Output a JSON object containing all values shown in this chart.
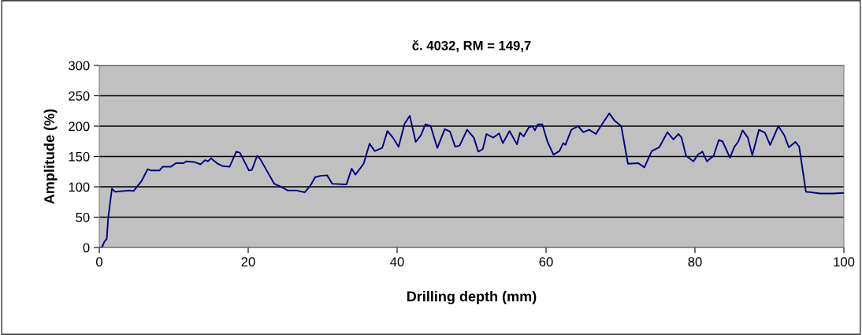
{
  "chart_data": {
    "type": "line",
    "title": "č. 4032, RM = 149,7",
    "xlabel": "Drilling depth (mm)",
    "ylabel": "Amplitude (%)",
    "xlim": [
      0,
      100
    ],
    "xticks": [
      0,
      20,
      40,
      60,
      80,
      100
    ],
    "ylim": [
      0,
      300
    ],
    "yticks": [
      0,
      50,
      100,
      150,
      200,
      250,
      300
    ],
    "grid": "y",
    "legend": false,
    "marker": "none",
    "line_style": "solid",
    "series": [
      {
        "color": "#000080",
        "x": [
          0,
          0.35,
          0.7,
          1.0,
          1.2,
          1.7,
          2.1,
          4.1,
          4.6,
          5.7,
          6.5,
          6.9,
          8.1,
          8.5,
          9.6,
          10.3,
          11.3,
          11.7,
          12.7,
          13.6,
          14.2,
          14.6,
          15.0,
          15.9,
          16.6,
          17.5,
          18.4,
          18.9,
          20.1,
          20.5,
          21.2,
          21.6,
          22.3,
          23.5,
          24.4,
          25.3,
          26.5,
          27.6,
          28.3,
          29.0,
          29.7,
          30.6,
          31.3,
          33.2,
          33.9,
          34.4,
          35.5,
          36.3,
          37.0,
          38.0,
          38.7,
          39.5,
          40.2,
          41.0,
          41.7,
          42.5,
          43.2,
          43.8,
          44.5,
          45.4,
          46.4,
          47.1,
          47.8,
          48.4,
          49.4,
          50.3,
          50.9,
          51.5,
          52.0,
          52.9,
          53.7,
          54.2,
          55.1,
          56.1,
          56.5,
          57.0,
          57.7,
          58.2,
          58.5,
          58.9,
          59.5,
          60.2,
          61.0,
          61.8,
          62.3,
          62.6,
          63.4,
          64.3,
          65.0,
          65.8,
          66.7,
          67.4,
          68.5,
          69.2,
          70.1,
          71.0,
          72.4,
          73.2,
          74.2,
          75.2,
          76.3,
          77.1,
          77.8,
          78.2,
          78.8,
          79.8,
          80.4,
          81.0,
          81.6,
          82.5,
          83.2,
          83.7,
          84.7,
          85.3,
          85.8,
          86.4,
          87.1,
          87.7,
          88.6,
          89.4,
          90.1,
          91.2,
          92.0,
          92.6,
          93.5,
          94.0,
          94.9,
          95.6,
          96.8,
          98.6,
          100
        ],
        "values": [
          0,
          0,
          10,
          14,
          49,
          97,
          92,
          94,
          93,
          110,
          129,
          127,
          127,
          133,
          133,
          139,
          139,
          142,
          141,
          137,
          144,
          142,
          147,
          138,
          134,
          133,
          158,
          156,
          127,
          128,
          151,
          146,
          131,
          105,
          100,
          94,
          94,
          91,
          101,
          116,
          118,
          119,
          105,
          104,
          130,
          120,
          138,
          171,
          159,
          164,
          192,
          180,
          166,
          204,
          217,
          174,
          185,
          203,
          200,
          164,
          195,
          191,
          166,
          168,
          194,
          181,
          158,
          162,
          187,
          181,
          188,
          172,
          192,
          170,
          189,
          183,
          198,
          200,
          193,
          203,
          203,
          174,
          153,
          159,
          172,
          169,
          194,
          200,
          190,
          194,
          187,
          201,
          221,
          209,
          200,
          138,
          139,
          132,
          159,
          165,
          190,
          178,
          187,
          181,
          151,
          142,
          153,
          158,
          142,
          151,
          177,
          175,
          148,
          166,
          174,
          193,
          181,
          152,
          194,
          189,
          169,
          200,
          185,
          165,
          174,
          166,
          92,
          91,
          89,
          89,
          90
        ]
      }
    ]
  }
}
